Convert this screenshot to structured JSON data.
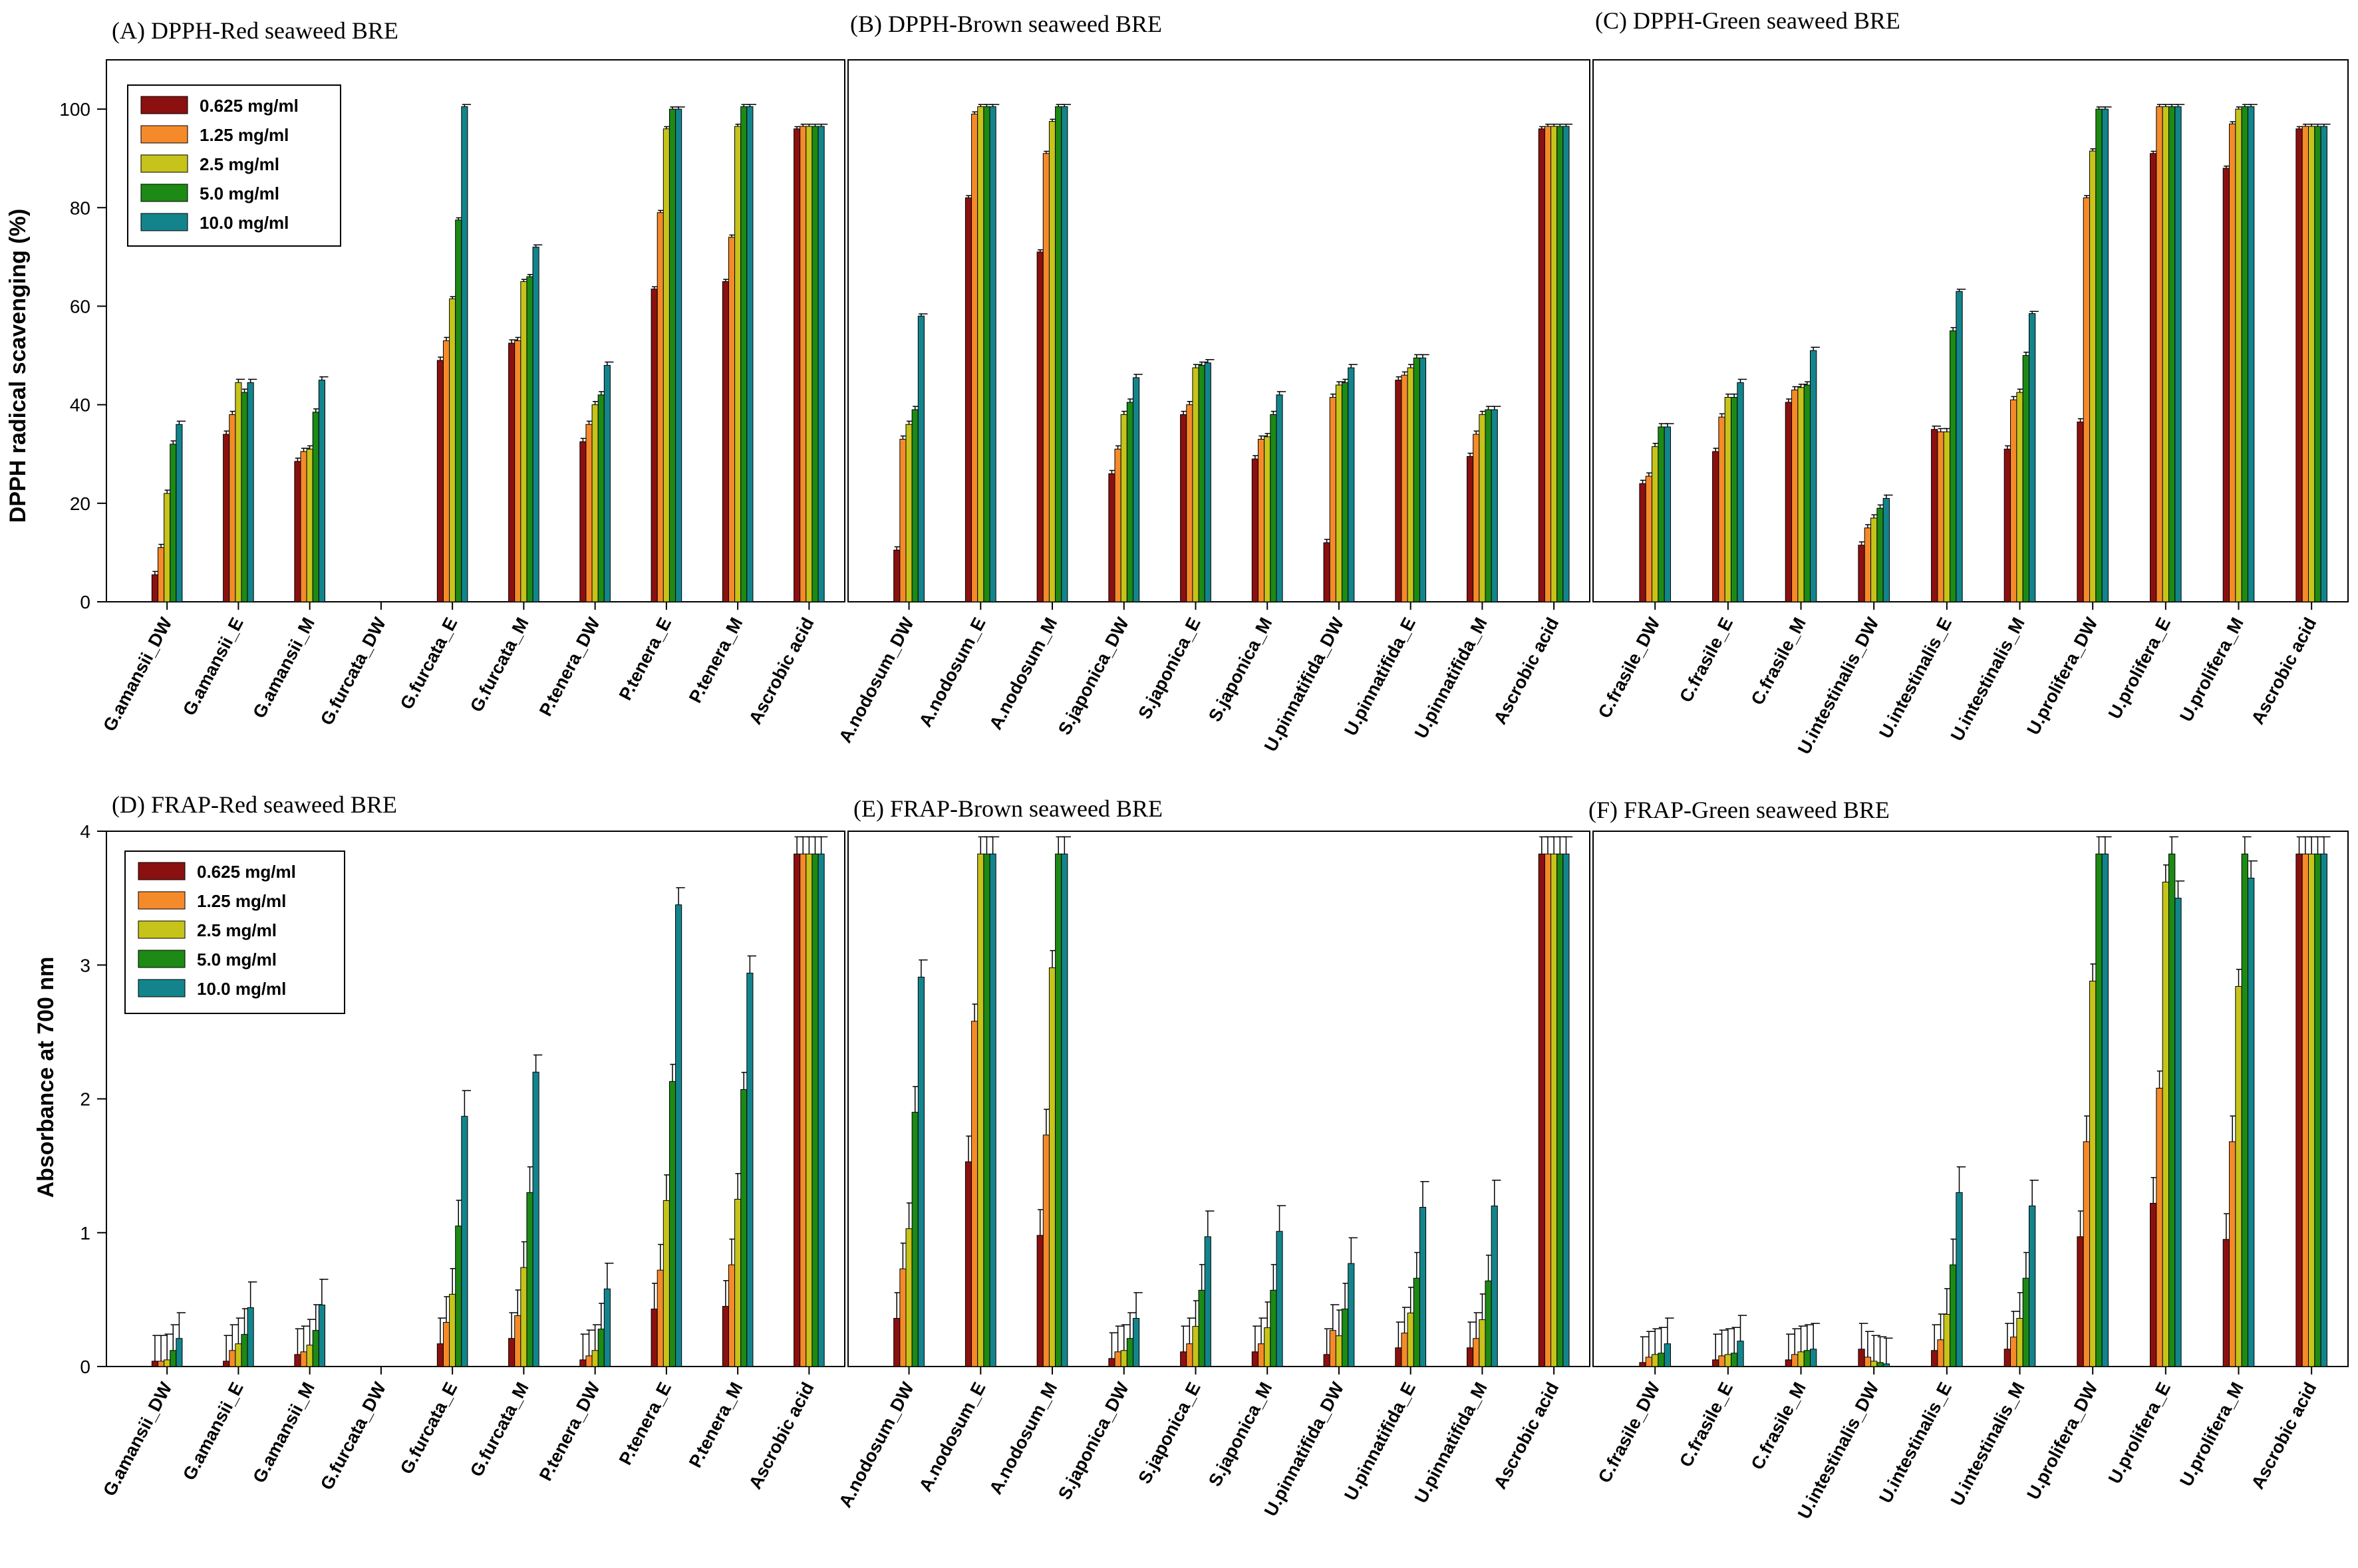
{
  "legend": [
    "0.625 mg/ml",
    "1.25 mg/ml",
    "2.5 mg/ml",
    "5.0 mg/ml",
    "10.0 mg/ml"
  ],
  "colors": [
    "#8b1010",
    "#f58a2a",
    "#c6c31a",
    "#1c8a14",
    "#13848c"
  ],
  "rows": [
    {
      "ylabel": "DPPH radical scavenging (%)",
      "ylim": [
        0,
        110
      ],
      "yticks": [
        "0",
        "20",
        "40",
        "60",
        "80",
        "100"
      ]
    },
    {
      "ylabel": "Absorbance at 700 nm",
      "ylim": [
        0,
        4
      ],
      "yticks": [
        "0",
        "1",
        "2",
        "3",
        "4"
      ]
    }
  ],
  "chart_data": [
    {
      "type": "bar",
      "title": "(A) DPPH-Red seaweed BRE",
      "categories": [
        "G.amansii_DW",
        "G.amansii_E",
        "G.amansii_M",
        "G.furcata_DW",
        "G.furcata_E",
        "G.furcata_M",
        "P.tenera_DW",
        "P.tenera_E",
        "P.tenera_M",
        "Ascrobic acid"
      ],
      "series": [
        [
          5.5,
          34,
          28.5,
          0,
          49,
          52.5,
          32.5,
          63.5,
          65,
          96
        ],
        [
          11,
          38,
          30.5,
          0,
          53,
          53,
          36,
          79,
          74,
          96.5
        ],
        [
          22,
          44.5,
          31,
          0,
          61.5,
          65,
          40,
          96,
          96.5,
          96.5
        ],
        [
          32,
          42.5,
          38.5,
          0,
          77.5,
          66,
          42,
          100,
          100.5,
          96.5
        ],
        [
          36,
          44.5,
          45,
          0,
          100.5,
          72,
          48,
          100,
          100.5,
          96.5
        ]
      ]
    },
    {
      "type": "bar",
      "title": "(B) DPPH-Brown seaweed BRE",
      "categories": [
        "A.nodosum_DW",
        "A.nodosum_E",
        "A.nodosum_M",
        "S.japonica_DW",
        "S.japonica_E",
        "S.japonica_M",
        "U.pinnatifida_DW",
        "U.pinnatifida_E",
        "U.pinnatifida_M",
        "Ascrobic acid"
      ],
      "series": [
        [
          10.5,
          82,
          71,
          26,
          38,
          29,
          12,
          45,
          29.5,
          96
        ],
        [
          33,
          99,
          91,
          31,
          40,
          33,
          41.5,
          46,
          34,
          96.5
        ],
        [
          36,
          100.5,
          97.5,
          38,
          47.5,
          33.5,
          44,
          47.5,
          38,
          96.5
        ],
        [
          39,
          100.5,
          100.5,
          40.5,
          48,
          38,
          44.5,
          49.5,
          39,
          96.5
        ],
        [
          58,
          100.5,
          100.5,
          45.5,
          48.5,
          42,
          47.5,
          49.5,
          39,
          96.5
        ]
      ]
    },
    {
      "type": "bar",
      "title": "(C) DPPH-Green seaweed BRE",
      "categories": [
        "C.frasile_DW",
        "C.frasile_E",
        "C.frasile_M",
        "U.intestinalis_DW",
        "U.intestinalis_E",
        "U.intestinalis_M",
        "U.prolifera_DW",
        "U.prolifera_E",
        "U.prolifera_M",
        "Ascrobic acid"
      ],
      "series": [
        [
          24,
          30.5,
          40.5,
          11.5,
          35,
          31,
          36.5,
          91,
          88,
          96
        ],
        [
          25.5,
          37.5,
          43,
          15,
          34.5,
          41,
          82,
          100.5,
          97,
          96.5
        ],
        [
          31.5,
          41.5,
          43.5,
          17,
          34.5,
          42.5,
          91.5,
          100.5,
          100,
          96.5
        ],
        [
          35.5,
          41.5,
          44,
          19,
          55,
          50,
          100,
          100.5,
          100.5,
          96.5
        ],
        [
          35.5,
          44.5,
          51,
          21,
          63,
          58.5,
          100,
          100.5,
          100.5,
          96.5
        ]
      ]
    },
    {
      "type": "bar",
      "title": "(D) FRAP-Red seaweed BRE",
      "categories": [
        "G.amansii_DW",
        "G.amansii_E",
        "G.amansii_M",
        "G.furcata_DW",
        "G.furcata_E",
        "G.furcata_M",
        "P.tenera_DW",
        "P.tenera_E",
        "P.tenera_M",
        "Ascrobic acid"
      ],
      "series": [
        [
          0.04,
          0.04,
          0.09,
          0,
          0.17,
          0.21,
          0.05,
          0.43,
          0.45,
          3.83
        ],
        [
          0.04,
          0.12,
          0.11,
          0,
          0.33,
          0.38,
          0.08,
          0.72,
          0.76,
          3.83
        ],
        [
          0.05,
          0.17,
          0.16,
          0,
          0.54,
          0.74,
          0.12,
          1.24,
          1.25,
          3.83
        ],
        [
          0.12,
          0.24,
          0.27,
          0,
          1.05,
          1.3,
          0.28,
          2.13,
          2.07,
          3.83
        ],
        [
          0.21,
          0.44,
          0.46,
          0,
          1.87,
          2.2,
          0.58,
          3.45,
          2.94,
          3.83
        ]
      ]
    },
    {
      "type": "bar",
      "title": "(E) FRAP-Brown seaweed BRE",
      "categories": [
        "A.nodosum_DW",
        "A.nodosum_E",
        "A.nodosum_M",
        "S.japonica_DW",
        "S.japonica_E",
        "S.japonica_M",
        "U.pinnatifida_DW",
        "U.pinnatifida_E",
        "U.pinnatifida_M",
        "Ascrobic acid"
      ],
      "series": [
        [
          0.36,
          1.53,
          0.98,
          0.06,
          0.11,
          0.11,
          0.09,
          0.14,
          0.14,
          3.83
        ],
        [
          0.73,
          2.58,
          1.73,
          0.11,
          0.17,
          0.17,
          0.27,
          0.25,
          0.21,
          3.83
        ],
        [
          1.03,
          3.83,
          2.98,
          0.12,
          0.3,
          0.29,
          0.23,
          0.4,
          0.35,
          3.83
        ],
        [
          1.9,
          3.83,
          3.83,
          0.21,
          0.57,
          0.57,
          0.43,
          0.66,
          0.64,
          3.83
        ],
        [
          2.91,
          3.83,
          3.83,
          0.36,
          0.97,
          1.01,
          0.77,
          1.19,
          1.2,
          3.83
        ]
      ]
    },
    {
      "type": "bar",
      "title": "(F) FRAP-Green seaweed BRE",
      "categories": [
        "C.frasile_DW",
        "C.frasile_E",
        "C.frasile_M",
        "U.intestinalis_DW",
        "U.intestinalis_E",
        "U.intestinalis_M",
        "U.prolifera_DW",
        "U.prolifera_E",
        "U.prolifera_M",
        "Ascrobic acid"
      ],
      "series": [
        [
          0.03,
          0.05,
          0.05,
          0.13,
          0.12,
          0.13,
          0.97,
          1.22,
          0.95,
          3.83
        ],
        [
          0.07,
          0.08,
          0.09,
          0.07,
          0.2,
          0.22,
          1.68,
          2.08,
          1.68,
          3.83
        ],
        [
          0.09,
          0.09,
          0.11,
          0.04,
          0.39,
          0.36,
          2.88,
          3.62,
          2.84,
          3.83
        ],
        [
          0.1,
          0.1,
          0.12,
          0.03,
          0.76,
          0.66,
          3.83,
          3.83,
          3.83,
          3.83
        ],
        [
          0.17,
          0.19,
          0.13,
          0.02,
          1.3,
          1.2,
          3.83,
          3.5,
          3.65,
          3.83
        ]
      ]
    }
  ]
}
